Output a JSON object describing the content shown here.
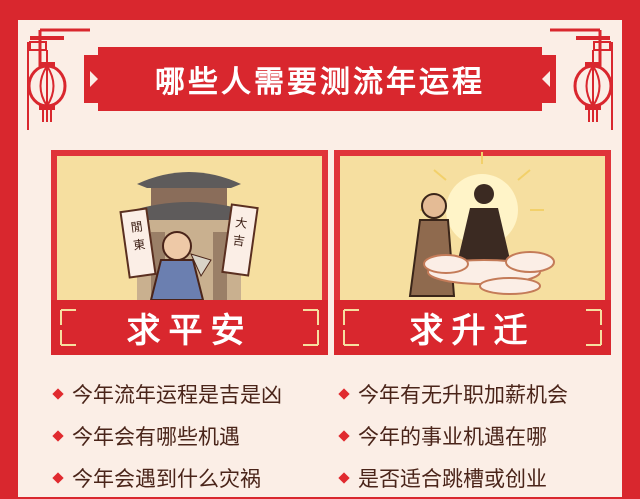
{
  "header": {
    "title": "哪些人需要测流年运程"
  },
  "cards": [
    {
      "title": "求平安",
      "scroll_left": "閒東",
      "scroll_right": "大吉",
      "items": [
        "今年流年运程是吉是凶",
        "今年会有哪些机遇",
        "今年会遇到什么灾祸"
      ]
    },
    {
      "title": "求升迁",
      "items": [
        "今年有无升职加薪机会",
        "今年的事业机遇在哪",
        "是否适合跳槽或创业"
      ]
    }
  ],
  "colors": {
    "primary_red": "#d9272e",
    "panel": "#fbeee6",
    "card_bg": "#f6dfa0",
    "text": "#4a2419"
  },
  "icons": [
    "lantern-icon",
    "cloud-pattern-icon",
    "diamond-bullet-icon"
  ]
}
